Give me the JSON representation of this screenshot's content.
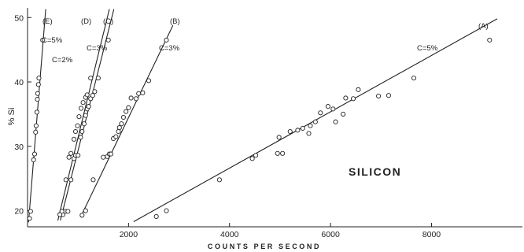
{
  "colors": {
    "ink": "#222222",
    "background": "#ffffff"
  },
  "chart_data": {
    "type": "scatter",
    "title": "SILICON",
    "xlabel": "COUNTS PER SECOND",
    "ylabel": "% Si",
    "xlim": [
      0,
      9800
    ],
    "ylim": [
      17.5,
      51.5
    ],
    "x_ticks": [
      2000,
      4000,
      6000,
      8000
    ],
    "y_ticks": [
      20,
      30,
      40,
      50
    ],
    "grid": false,
    "series": [
      {
        "name": "(A)",
        "annotation": "C=5%",
        "fit": {
          "x": [
            2100,
            9300
          ],
          "y": [
            18.3,
            49.8
          ]
        },
        "points": [
          {
            "x": 2550,
            "y": 19.1
          },
          {
            "x": 2750,
            "y": 20.0
          },
          {
            "x": 3800,
            "y": 24.8
          },
          {
            "x": 4450,
            "y": 28.1
          },
          {
            "x": 4520,
            "y": 28.6
          },
          {
            "x": 4950,
            "y": 28.9
          },
          {
            "x": 5050,
            "y": 28.9
          },
          {
            "x": 4980,
            "y": 31.4
          },
          {
            "x": 5200,
            "y": 32.3
          },
          {
            "x": 5350,
            "y": 32.5
          },
          {
            "x": 5450,
            "y": 32.8
          },
          {
            "x": 5570,
            "y": 32.0
          },
          {
            "x": 5600,
            "y": 33.2
          },
          {
            "x": 5700,
            "y": 33.8
          },
          {
            "x": 5800,
            "y": 35.2
          },
          {
            "x": 5950,
            "y": 36.2
          },
          {
            "x": 6050,
            "y": 35.8
          },
          {
            "x": 6100,
            "y": 33.8
          },
          {
            "x": 6250,
            "y": 35.0
          },
          {
            "x": 6300,
            "y": 37.5
          },
          {
            "x": 6450,
            "y": 37.4
          },
          {
            "x": 6550,
            "y": 38.8
          },
          {
            "x": 6950,
            "y": 37.8
          },
          {
            "x": 7150,
            "y": 37.9
          },
          {
            "x": 7650,
            "y": 40.6
          },
          {
            "x": 9150,
            "y": 46.5
          }
        ]
      },
      {
        "name": "(B)",
        "annotation": "C=3%",
        "fit": {
          "x": [
            1050,
            2880
          ],
          "y": [
            19.0,
            48.8
          ]
        },
        "points": [
          {
            "x": 1080,
            "y": 19.3
          },
          {
            "x": 1150,
            "y": 20.0
          },
          {
            "x": 1300,
            "y": 24.8
          },
          {
            "x": 1500,
            "y": 28.3
          },
          {
            "x": 1580,
            "y": 28.4
          },
          {
            "x": 1620,
            "y": 28.8
          },
          {
            "x": 1650,
            "y": 28.8
          },
          {
            "x": 1700,
            "y": 31.2
          },
          {
            "x": 1750,
            "y": 31.5
          },
          {
            "x": 1800,
            "y": 32.3
          },
          {
            "x": 1820,
            "y": 32.9
          },
          {
            "x": 1860,
            "y": 33.5
          },
          {
            "x": 1900,
            "y": 34.5
          },
          {
            "x": 1950,
            "y": 35.4
          },
          {
            "x": 2000,
            "y": 36.0
          },
          {
            "x": 2050,
            "y": 37.5
          },
          {
            "x": 2150,
            "y": 37.4
          },
          {
            "x": 2200,
            "y": 38.2
          },
          {
            "x": 2280,
            "y": 38.3
          },
          {
            "x": 2400,
            "y": 40.2
          },
          {
            "x": 2750,
            "y": 46.5
          }
        ]
      },
      {
        "name": "(C)",
        "annotation": "C=3%",
        "fit": {
          "x": [
            650,
            1710
          ],
          "y": [
            18.5,
            51.3
          ]
        },
        "points": [
          {
            "x": 700,
            "y": 19.4
          },
          {
            "x": 750,
            "y": 19.9
          },
          {
            "x": 800,
            "y": 19.9
          },
          {
            "x": 860,
            "y": 24.8
          },
          {
            "x": 920,
            "y": 28.1
          },
          {
            "x": 950,
            "y": 28.6
          },
          {
            "x": 1000,
            "y": 28.6
          },
          {
            "x": 1050,
            "y": 31.4
          },
          {
            "x": 1080,
            "y": 32.3
          },
          {
            "x": 1120,
            "y": 33.5
          },
          {
            "x": 1150,
            "y": 34.8
          },
          {
            "x": 1180,
            "y": 35.8
          },
          {
            "x": 1210,
            "y": 36.2
          },
          {
            "x": 1250,
            "y": 37.4
          },
          {
            "x": 1290,
            "y": 37.9
          },
          {
            "x": 1330,
            "y": 38.5
          },
          {
            "x": 1400,
            "y": 40.6
          },
          {
            "x": 1600,
            "y": 46.5
          }
        ]
      },
      {
        "name": "(D)",
        "annotation": "C=2%",
        "fit": {
          "x": [
            600,
            1620
          ],
          "y": [
            18.5,
            51.3
          ]
        },
        "points": [
          {
            "x": 640,
            "y": 19.4
          },
          {
            "x": 680,
            "y": 19.9
          },
          {
            "x": 760,
            "y": 24.8
          },
          {
            "x": 820,
            "y": 28.3
          },
          {
            "x": 860,
            "y": 28.9
          },
          {
            "x": 920,
            "y": 31.1
          },
          {
            "x": 950,
            "y": 32.3
          },
          {
            "x": 990,
            "y": 33.2
          },
          {
            "x": 1020,
            "y": 34.6
          },
          {
            "x": 1060,
            "y": 35.9
          },
          {
            "x": 1100,
            "y": 36.8
          },
          {
            "x": 1150,
            "y": 37.6
          },
          {
            "x": 1180,
            "y": 38.0
          },
          {
            "x": 1250,
            "y": 40.6
          }
        ]
      },
      {
        "name": "(E)",
        "annotation": "C=5%",
        "fit": {
          "x": [
            20,
            360
          ],
          "y": [
            18.2,
            51.3
          ]
        },
        "points": [
          {
            "x": 40,
            "y": 18.8
          },
          {
            "x": 60,
            "y": 19.9
          },
          {
            "x": 120,
            "y": 27.9
          },
          {
            "x": 140,
            "y": 28.8
          },
          {
            "x": 160,
            "y": 32.2
          },
          {
            "x": 170,
            "y": 33.2
          },
          {
            "x": 185,
            "y": 35.3
          },
          {
            "x": 195,
            "y": 37.3
          },
          {
            "x": 200,
            "y": 38.2
          },
          {
            "x": 215,
            "y": 39.6
          },
          {
            "x": 225,
            "y": 40.6
          },
          {
            "x": 300,
            "y": 46.5
          }
        ]
      }
    ]
  }
}
